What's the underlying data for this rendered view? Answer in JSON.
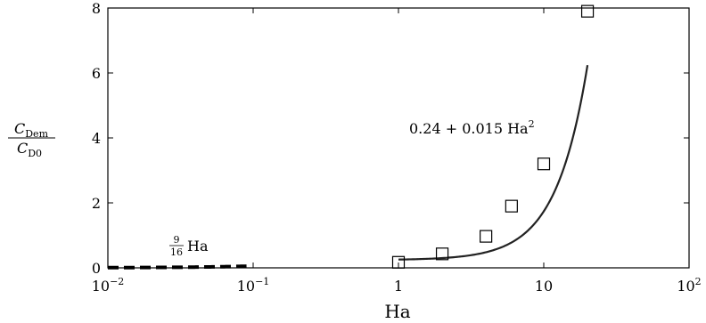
{
  "chart_data": {
    "type": "line",
    "xscale": "log",
    "xlim": [
      0.01,
      100
    ],
    "ylim": [
      0,
      8
    ],
    "xlabel": "Ha",
    "ylabel_num": "C",
    "ylabel_num_sub": "Dem",
    "ylabel_den": "C",
    "ylabel_den_sub": "D0",
    "x_ticks": [
      {
        "value": 0.01,
        "base": "10",
        "exp": "−2"
      },
      {
        "value": 0.1,
        "base": "10",
        "exp": "−1"
      },
      {
        "value": 1,
        "base": "1",
        "exp": ""
      },
      {
        "value": 10,
        "base": "10",
        "exp": ""
      },
      {
        "value": 100,
        "base": "10",
        "exp": "2"
      }
    ],
    "y_ticks": [
      0,
      2,
      4,
      6,
      8
    ],
    "series": [
      {
        "kind": "markers",
        "marker": "square",
        "x": [
          1,
          2,
          4,
          6,
          10,
          20
        ],
        "y": [
          0.17,
          0.43,
          0.97,
          1.9,
          3.2,
          7.9
        ]
      },
      {
        "kind": "curve",
        "style": "solid",
        "formula": "0.24 + 0.015 Ha^2",
        "x_range": [
          1,
          20
        ]
      },
      {
        "kind": "curve",
        "style": "dashed",
        "formula": "9/16 Ha",
        "x_range": [
          0.01,
          0.09
        ]
      }
    ],
    "annotations": {
      "quadratic": {
        "prefix": "0.24 + 0.015 Ha",
        "sup": "2"
      },
      "linear": {
        "frac_num": "9",
        "frac_den": "16",
        "suffix": "Ha"
      }
    }
  }
}
